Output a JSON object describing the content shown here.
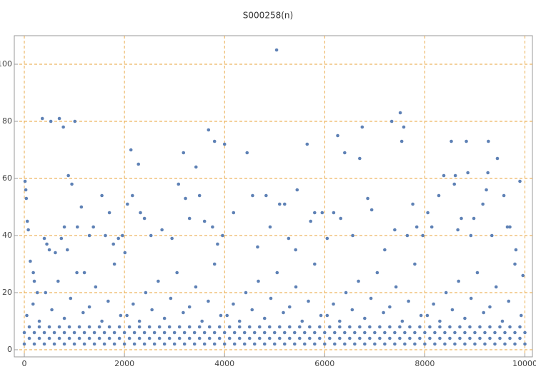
{
  "chart_data": {
    "type": "scatter",
    "title": "S000258(n)",
    "color": "#5e81b5",
    "grid": true,
    "grid_color": "#e8a33a",
    "xlim": [
      -200,
      10150
    ],
    "ylim": [
      -2.5,
      110
    ],
    "xticks": [
      0,
      2000,
      4000,
      6000,
      8000,
      10000
    ],
    "yticks": [
      0,
      20,
      40,
      60,
      80,
      100
    ],
    "x": [
      15,
      30,
      40,
      60,
      80,
      120,
      180,
      200,
      260,
      360,
      400,
      450,
      500,
      530,
      620,
      700,
      740,
      780,
      800,
      860,
      880,
      950,
      1010,
      1060,
      1140,
      1200,
      1300,
      1380,
      1550,
      1620,
      1700,
      1780,
      1880,
      1960,
      2010,
      2060,
      2130,
      2160,
      2280,
      2320,
      2400,
      2530,
      2750,
      2950,
      3080,
      3180,
      3220,
      3300,
      3430,
      3500,
      3600,
      3680,
      3760,
      3800,
      3860,
      3960,
      4000,
      4180,
      4450,
      4560,
      4660,
      4830,
      4910,
      5040,
      5100,
      5200,
      5280,
      5420,
      5450,
      5650,
      5720,
      5800,
      5950,
      6050,
      6180,
      6260,
      6320,
      6400,
      6560,
      6700,
      6750,
      6860,
      6940,
      7200,
      7340,
      7400,
      7510,
      7540,
      7580,
      7650,
      7760,
      7840,
      7960,
      8060,
      8140,
      8280,
      8380,
      8530,
      8590,
      8610,
      8660,
      8730,
      8830,
      8860,
      8920,
      8980,
      9160,
      9230,
      9260,
      9270,
      9340,
      9450,
      9580,
      9650,
      9700,
      9820,
      9900,
      9960,
      50,
      175,
      300,
      425,
      550,
      675,
      800,
      925,
      1050,
      1175,
      1300,
      1425,
      1550,
      1675,
      1800,
      1925,
      2050,
      2175,
      2300,
      2425,
      2550,
      2675,
      2800,
      2925,
      3050,
      3175,
      3300,
      3425,
      3550,
      3675,
      3800,
      3925,
      4050,
      4175,
      4300,
      4425,
      4550,
      4675,
      4800,
      4925,
      5050,
      5175,
      5300,
      5425,
      5550,
      5675,
      5800,
      5925,
      6050,
      6175,
      6300,
      6425,
      6550,
      6675,
      6800,
      6925,
      7050,
      7175,
      7300,
      7425,
      7550,
      7675,
      7800,
      7925,
      8050,
      8175,
      8300,
      8425,
      8550,
      8675,
      8800,
      8925,
      9050,
      9175,
      9300,
      9425,
      9550,
      9675,
      9800,
      9925,
      0,
      200,
      400,
      600,
      800,
      1000,
      1200,
      1400,
      1600,
      1800,
      2000,
      2200,
      2400,
      2600,
      2800,
      3000,
      3200,
      3400,
      3600,
      3800,
      4000,
      4200,
      4400,
      4600,
      4800,
      5000,
      5200,
      5400,
      5600,
      5800,
      6000,
      6200,
      6400,
      6600,
      6800,
      7000,
      7200,
      7400,
      7600,
      7800,
      8000,
      8200,
      8400,
      8600,
      8800,
      9000,
      9200,
      9400,
      9600,
      9800,
      10000,
      100,
      300,
      500,
      700,
      900,
      1100,
      1300,
      1500,
      1700,
      1900,
      2100,
      2300,
      2500,
      2700,
      2900,
      3100,
      3300,
      3500,
      3700,
      3900,
      4100,
      4300,
      4500,
      4700,
      4900,
      5100,
      5300,
      5500,
      5700,
      5900,
      6100,
      6300,
      6500,
      6700,
      6900,
      7100,
      7300,
      7500,
      7700,
      7900,
      8100,
      8300,
      8500,
      8700,
      8900,
      9100,
      9300,
      9500,
      9700,
      9900,
      0,
      200,
      400,
      600,
      800,
      1000,
      1200,
      1400,
      1600,
      1800,
      2000,
      2200,
      2400,
      2600,
      2800,
      3000,
      3200,
      3400,
      3600,
      3800,
      4000,
      4200,
      4400,
      4600,
      4800,
      5000,
      5200,
      5400,
      5600,
      5800,
      6000,
      6200,
      6400,
      6600,
      6800,
      7000,
      7200,
      7400,
      7600,
      7800,
      8000,
      8200,
      8400,
      8600,
      8800,
      9000,
      9200,
      9400,
      9600,
      9800,
      10000,
      100,
      300,
      500,
      700,
      900,
      1100,
      1300,
      1500,
      1700,
      1900,
      2100,
      2300,
      2500,
      2700,
      2900,
      3100,
      3300,
      3500,
      3700,
      3900,
      4100,
      4300,
      4500,
      4700,
      4900,
      5100,
      5300,
      5500,
      5700,
      5900,
      6100,
      6300,
      6500,
      6700,
      6900,
      7100,
      7300,
      7500,
      7700,
      7900,
      8100,
      8300,
      8500,
      8700,
      8900,
      9100,
      9300,
      9500,
      9700,
      9900
    ],
    "values": [
      59,
      56,
      53,
      45,
      42,
      31,
      27,
      24,
      20,
      81,
      39,
      37,
      35,
      80,
      34,
      81,
      39,
      78,
      43,
      35,
      61,
      58,
      80,
      43,
      50,
      27,
      40,
      43,
      54,
      40,
      48,
      37,
      39,
      40,
      34,
      51,
      70,
      54,
      65,
      48,
      46,
      40,
      42,
      39,
      58,
      69,
      53,
      46,
      64,
      54,
      45,
      77,
      43,
      73,
      37,
      40,
      72,
      48,
      69,
      54,
      36,
      54,
      43,
      105,
      51,
      51,
      39,
      35,
      56,
      72,
      45,
      48,
      48,
      39,
      48,
      75,
      46,
      69,
      40,
      67,
      78,
      53,
      49,
      35,
      80,
      42,
      83,
      73,
      78,
      40,
      51,
      43,
      40,
      48,
      43,
      54,
      61,
      73,
      58,
      61,
      42,
      46,
      73,
      62,
      40,
      46,
      51,
      56,
      62,
      73,
      40,
      67,
      54,
      43,
      43,
      35,
      59,
      26,
      12,
      16,
      10,
      20,
      14,
      24,
      11,
      18,
      27,
      13,
      15,
      22,
      10,
      17,
      30,
      12,
      12,
      16,
      10,
      20,
      14,
      24,
      11,
      18,
      27,
      13,
      15,
      22,
      10,
      17,
      30,
      12,
      12,
      16,
      10,
      20,
      14,
      24,
      11,
      18,
      27,
      13,
      15,
      22,
      10,
      17,
      30,
      12,
      12,
      16,
      10,
      20,
      14,
      24,
      11,
      18,
      27,
      13,
      15,
      22,
      10,
      17,
      30,
      12,
      12,
      16,
      10,
      20,
      14,
      24,
      11,
      18,
      27,
      13,
      15,
      22,
      10,
      17,
      30,
      12,
      2,
      2,
      2,
      2,
      2,
      2,
      2,
      2,
      2,
      2,
      2,
      2,
      2,
      2,
      2,
      2,
      2,
      2,
      2,
      2,
      2,
      2,
      2,
      2,
      2,
      2,
      2,
      2,
      2,
      2,
      2,
      2,
      2,
      2,
      2,
      2,
      2,
      2,
      2,
      2,
      2,
      2,
      2,
      2,
      2,
      2,
      2,
      2,
      2,
      2,
      2,
      4,
      4,
      4,
      4,
      4,
      4,
      4,
      4,
      4,
      4,
      4,
      4,
      4,
      4,
      4,
      4,
      4,
      4,
      4,
      4,
      4,
      4,
      4,
      4,
      4,
      4,
      4,
      4,
      4,
      4,
      4,
      4,
      4,
      4,
      4,
      4,
      4,
      4,
      4,
      4,
      4,
      4,
      4,
      4,
      4,
      4,
      4,
      4,
      4,
      4,
      6,
      6,
      6,
      6,
      6,
      6,
      6,
      6,
      6,
      6,
      6,
      6,
      6,
      6,
      6,
      6,
      6,
      6,
      6,
      6,
      6,
      6,
      6,
      6,
      6,
      6,
      6,
      6,
      6,
      6,
      6,
      6,
      6,
      6,
      6,
      6,
      6,
      6,
      6,
      6,
      6,
      6,
      6,
      6,
      6,
      6,
      6,
      6,
      6,
      6,
      6,
      8,
      8,
      8,
      8,
      8,
      8,
      8,
      8,
      8,
      8,
      8,
      8,
      8,
      8,
      8,
      8,
      8,
      8,
      8,
      8,
      8,
      8,
      8,
      8,
      8,
      8,
      8,
      8,
      8,
      8,
      8,
      8,
      8,
      8,
      8,
      8,
      8,
      8,
      8,
      8,
      8,
      8,
      8,
      8,
      8,
      8,
      8,
      8,
      8,
      8
    ]
  }
}
